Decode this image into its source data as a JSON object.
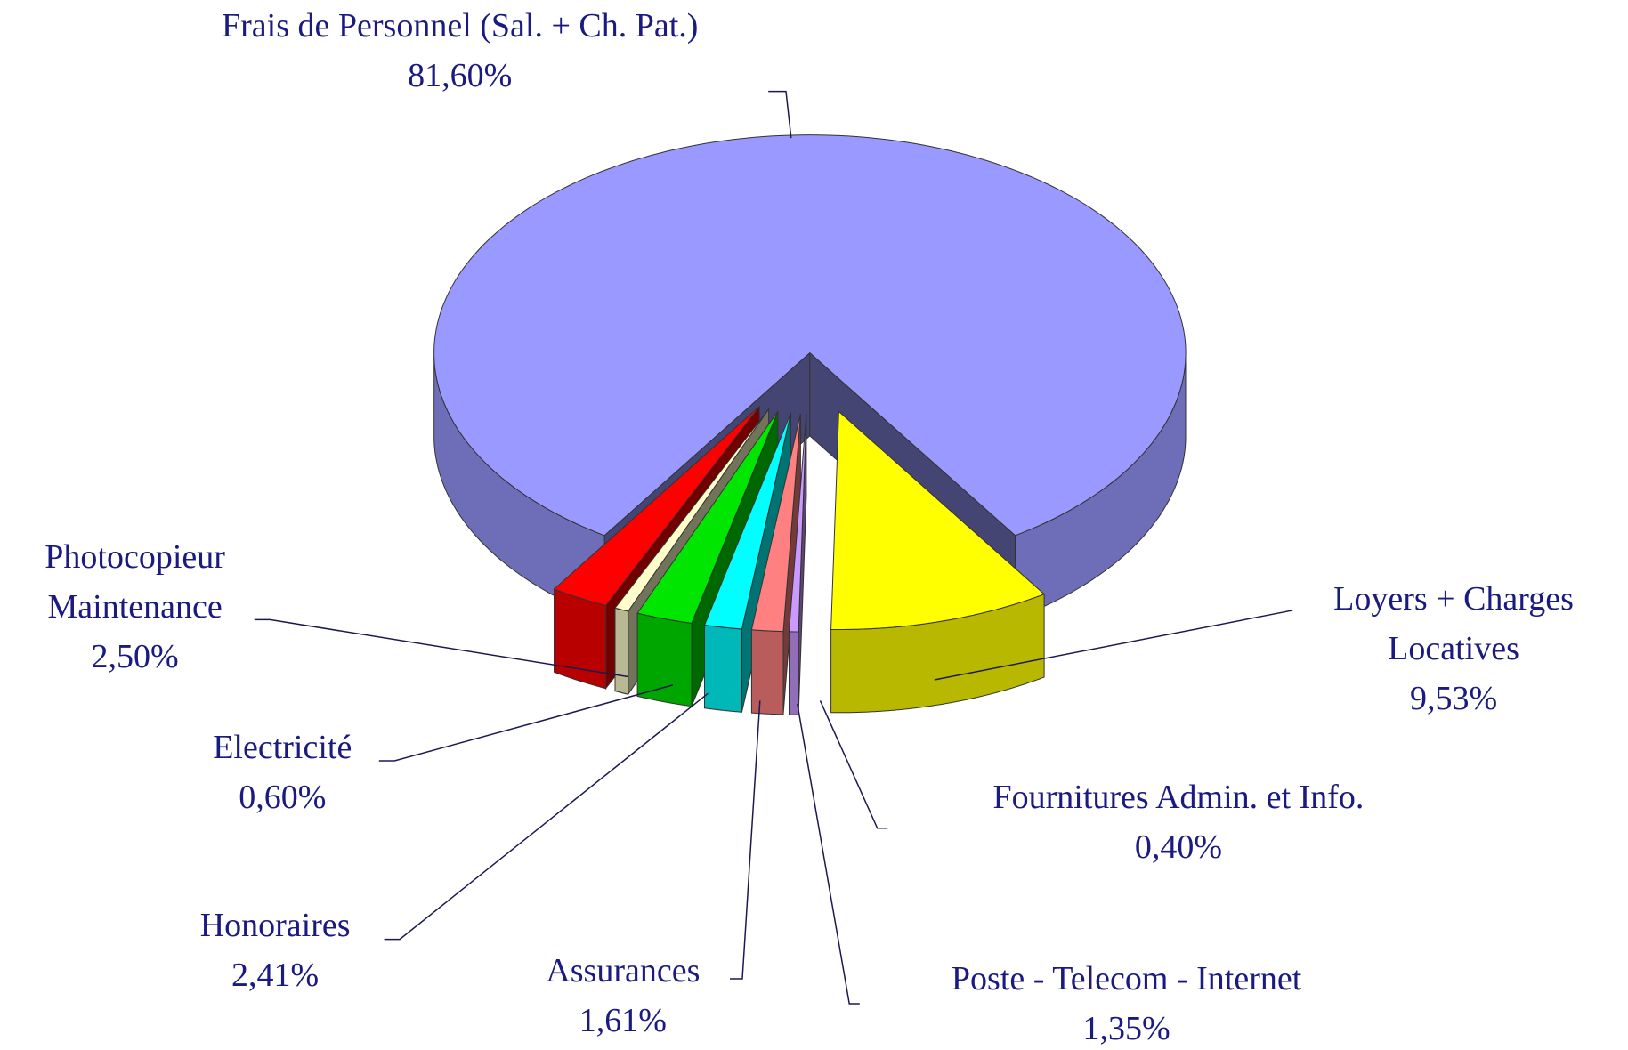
{
  "chart_data": {
    "type": "pie",
    "categories": [
      "Frais de Personnel (Sal. + Ch. Pat.)",
      "Loyers + Charges Locatives",
      "Fournitures Admin. et Info.",
      "Poste - Telecom - Internet",
      "Assurances",
      "Honoraires",
      "Electricité",
      "Photocopieur Maintenance"
    ],
    "values": [
      81.6,
      9.53,
      0.4,
      1.35,
      1.61,
      2.41,
      0.6,
      2.5
    ],
    "value_labels": [
      "81,60%",
      "9,53%",
      "0,40%",
      "1,35%",
      "1,61%",
      "2,41%",
      "0,60%",
      "2,50%"
    ],
    "colors": [
      "#9999ff",
      "#ffff00",
      "#cc99ff",
      "#ff8080",
      "#00ffff",
      "#00e600",
      "#ffffcc",
      "#ff0000"
    ]
  }
}
